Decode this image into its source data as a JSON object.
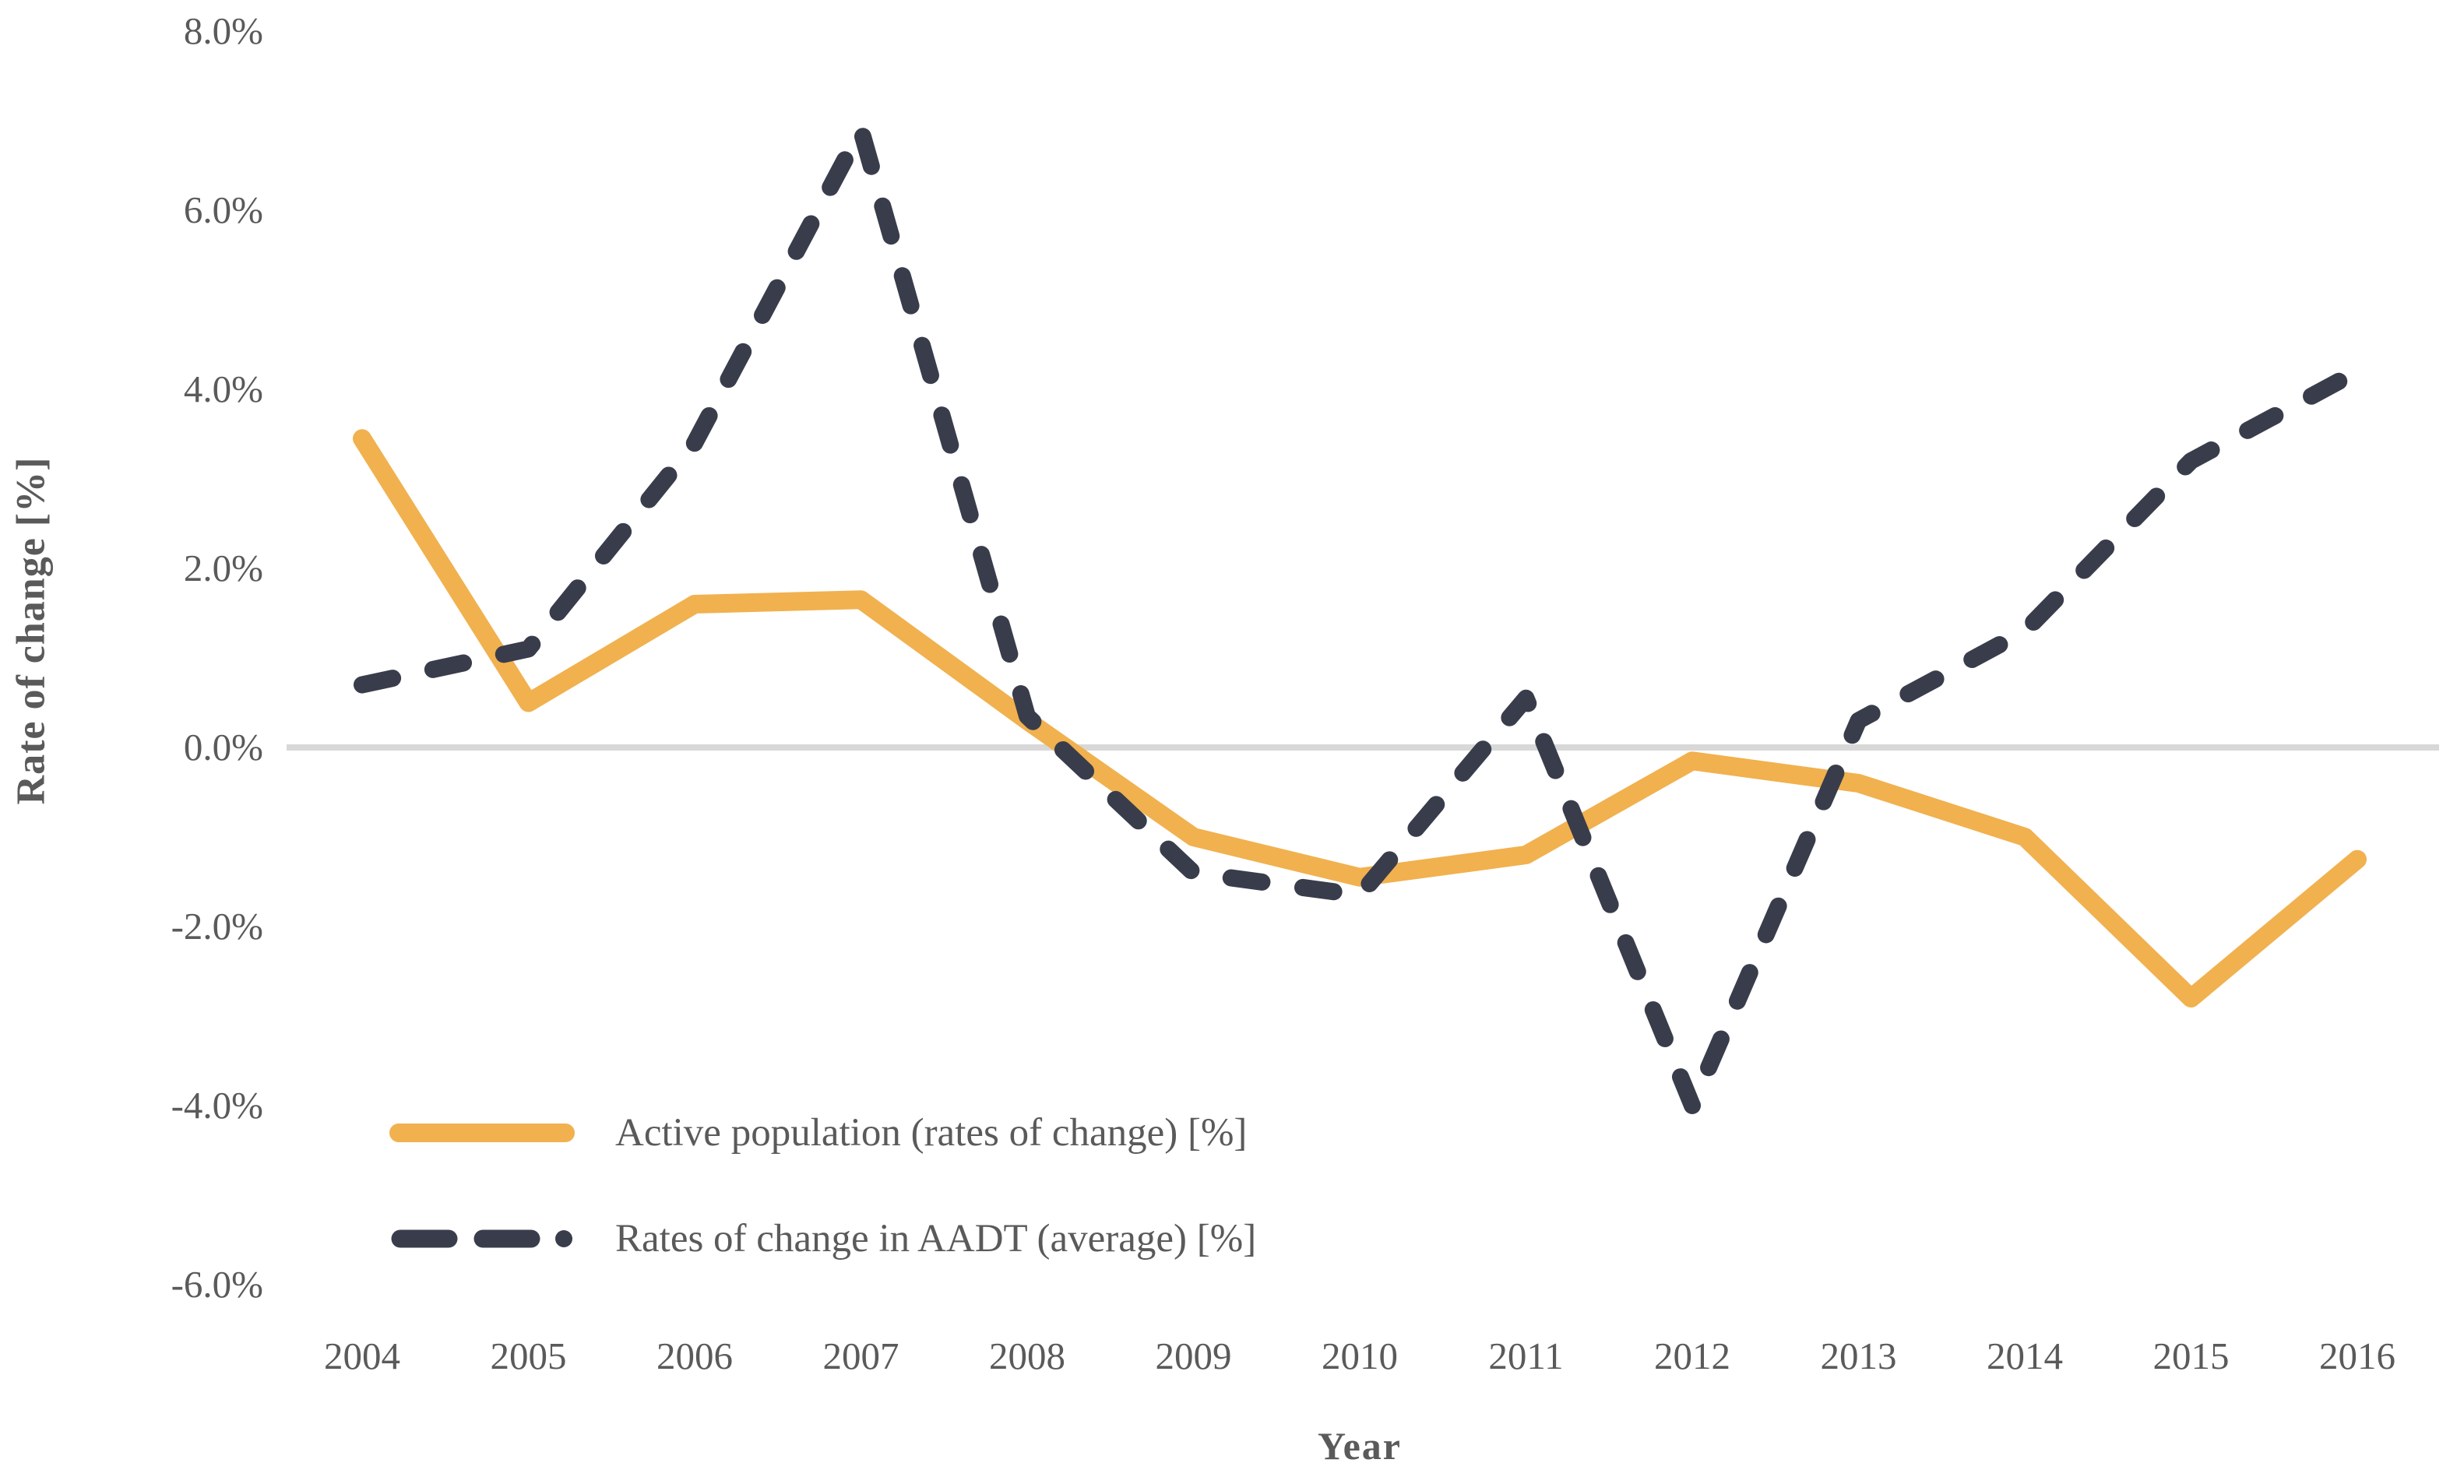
{
  "figure": {
    "text_color": "#5A5A5A",
    "background": "#FFFFFF"
  },
  "chart_data": {
    "type": "line",
    "title": "",
    "xlabel": "Year",
    "ylabel": "Rate of change [%]",
    "x_labels": [
      "2004",
      "2005",
      "2006",
      "2007",
      "2008",
      "2009",
      "2010",
      "2011",
      "2012",
      "2013",
      "2014",
      "2015",
      "2016"
    ],
    "y_tick_labels": [
      "8.0%",
      "6.0%",
      "4.0%",
      "2.0%",
      "0.0%",
      "-2.0%",
      "-4.0%",
      "-6.0%"
    ],
    "ylim": [
      -6,
      8
    ],
    "grid": "zero-line-only",
    "zero_line_color": "#D8D8D8",
    "legend_position": "inside-bottom-left",
    "series": [
      {
        "name": "Active population (rates of change) [%]",
        "line_style": "solid",
        "color": "#F1B14F",
        "values_pct": [
          3.45,
          0.5,
          1.6,
          1.65,
          0.3,
          -1.0,
          -1.45,
          -1.2,
          -0.15,
          -0.4,
          -1.0,
          -2.8,
          -1.25
        ]
      },
      {
        "name": "Rates of change in AADT (average) [%]",
        "line_style": "dashed",
        "color": "#393D4B",
        "values_pct": [
          0.7,
          1.1,
          3.4,
          6.9,
          0.35,
          -1.4,
          -1.65,
          0.55,
          -4.0,
          0.3,
          1.3,
          3.2,
          4.2
        ]
      }
    ]
  }
}
